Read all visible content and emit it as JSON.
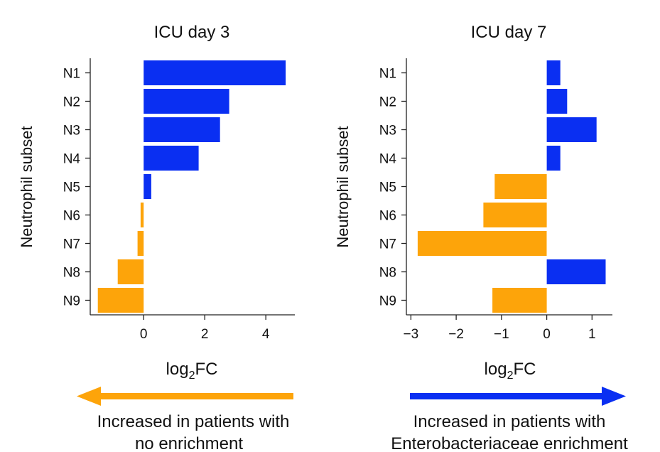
{
  "colors": {
    "positive": "#0a2ff2",
    "negative": "#fda40a",
    "axis": "#222222"
  },
  "chart_data": [
    {
      "type": "bar",
      "orientation": "horizontal",
      "title": "ICU day 3",
      "ylabel": "Neutrophil subset",
      "xlabel_main": "log",
      "xlabel_sub": "2",
      "xlabel_tail": "FC",
      "categories": [
        "N1",
        "N2",
        "N3",
        "N4",
        "N5",
        "N6",
        "N7",
        "N8",
        "N9"
      ],
      "values": [
        4.65,
        2.8,
        2.5,
        1.8,
        0.25,
        -0.1,
        -0.2,
        -0.85,
        -1.5
      ],
      "xticks": [
        0,
        2,
        4
      ],
      "xlim": [
        -1.75,
        4.95
      ]
    },
    {
      "type": "bar",
      "orientation": "horizontal",
      "title": "ICU day 7",
      "ylabel": "Neutrophil subset",
      "xlabel_main": "log",
      "xlabel_sub": "2",
      "xlabel_tail": "FC",
      "categories": [
        "N1",
        "N2",
        "N3",
        "N4",
        "N5",
        "N6",
        "N7",
        "N8",
        "N9"
      ],
      "values": [
        0.3,
        0.45,
        1.1,
        0.3,
        -1.15,
        -1.4,
        -2.85,
        1.3,
        -1.2
      ],
      "xticks": [
        -3,
        -2,
        -1,
        0,
        1
      ],
      "xlim": [
        -3.1,
        1.45
      ]
    }
  ],
  "arrows": [
    {
      "direction": "left",
      "color": "#fda40a",
      "line1": "Increased in patients with",
      "line2": "no enrichment"
    },
    {
      "direction": "right",
      "color": "#0a2ff2",
      "line1": "Increased in patients with",
      "line2": "Enterobacteriaceae enrichment"
    }
  ]
}
